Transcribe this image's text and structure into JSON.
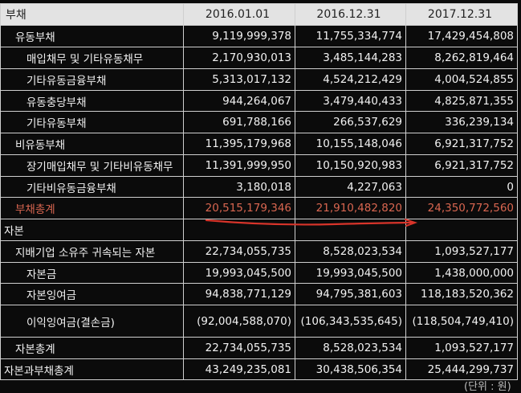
{
  "header": {
    "label": "부채",
    "columns": [
      "2016.01.01",
      "2016.12.31",
      "2017.12.31"
    ]
  },
  "rows": [
    {
      "label": "유동부채",
      "level": 1,
      "values": [
        "9,119,999,378",
        "11,755,334,774",
        "17,429,454,808"
      ],
      "height": 27
    },
    {
      "label": "매입채무 및 기타유동채무",
      "level": 2,
      "values": [
        "2,170,930,013",
        "3,485,144,283",
        "8,262,819,464"
      ],
      "height": 27
    },
    {
      "label": "기타유동금융부채",
      "level": 2,
      "values": [
        "5,313,017,132",
        "4,524,212,429",
        "4,004,524,855"
      ],
      "height": 27
    },
    {
      "label": "유동충당부채",
      "level": 2,
      "values": [
        "944,264,067",
        "3,479,440,433",
        "4,825,871,355"
      ],
      "height": 26
    },
    {
      "label": "기타유동부채",
      "level": 2,
      "values": [
        "691,788,166",
        "266,537,629",
        "336,239,134"
      ],
      "height": 27
    },
    {
      "label": "비유동부채",
      "level": 1,
      "values": [
        "11,395,179,968",
        "10,155,148,046",
        "6,921,317,752"
      ],
      "height": 27
    },
    {
      "label": "장기매입채무 및 기타비유동채무",
      "level": 2,
      "values": [
        "11,391,999,950",
        "10,150,920,983",
        "6,921,317,752"
      ],
      "height": 27
    },
    {
      "label": "기타비유동금융부채",
      "level": 2,
      "values": [
        "3,180,018",
        "4,227,063",
        "0"
      ],
      "height": 26
    },
    {
      "label": "부채총계",
      "level": 1,
      "highlight": true,
      "values": [
        "20,515,179,346",
        "21,910,482,820",
        "24,350,772,560"
      ],
      "height": 27
    },
    {
      "label": "자본",
      "level": 0,
      "section": true,
      "values": [
        "",
        "",
        ""
      ],
      "height": 27
    },
    {
      "label": "지배기업 소유주 귀속되는 자본",
      "level": 1,
      "values": [
        "22,734,055,735",
        "8,528,023,534",
        "1,093,527,177"
      ],
      "height": 27
    },
    {
      "label": "자본금",
      "level": 2,
      "values": [
        "19,993,045,500",
        "19,993,045,500",
        "1,438,000,000"
      ],
      "height": 26
    },
    {
      "label": "자본잉여금",
      "level": 2,
      "values": [
        "94,838,771,129",
        "94,795,381,603",
        "118,183,520,362"
      ],
      "height": 27
    },
    {
      "label": "이익잉여금(결손금)",
      "level": 2,
      "values": [
        "(92,004,588,070)",
        "(106,343,535,645)",
        "(118,504,749,410)"
      ],
      "height": 40
    },
    {
      "label": "자본총계",
      "level": 1,
      "values": [
        "22,734,055,735",
        "8,528,023,534",
        "1,093,527,177"
      ],
      "height": 27
    },
    {
      "label": "자본과부채총계",
      "level": 0,
      "values": [
        "43,249,235,081",
        "30,438,506,354",
        "25,444,299,737"
      ],
      "height": 26
    }
  ],
  "footer": {
    "unit_note": "(단위 : 원)"
  },
  "annotation": {
    "color": "#d8342a"
  }
}
